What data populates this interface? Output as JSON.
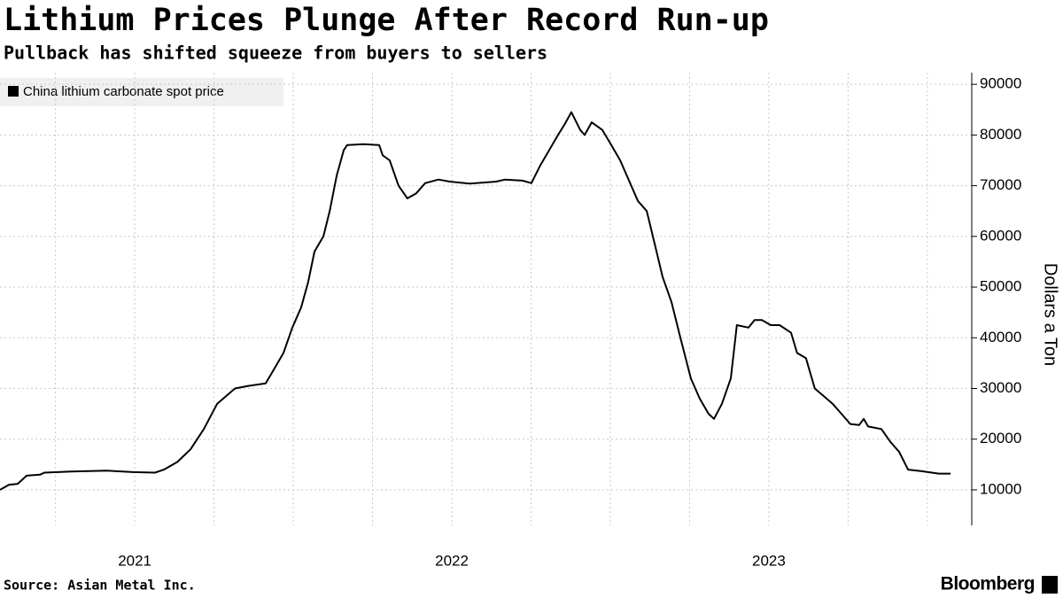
{
  "chart_data": {
    "type": "line",
    "title": "Lithium Prices Plunge After Record Run-up",
    "subtitle": "Pullback has shifted squeeze from buyers to sellers",
    "y_label": "Dollars a Ton",
    "source": "Source: Asian Metal Inc.",
    "brand": "Bloomberg",
    "x": [
      2020.575,
      2020.603,
      2020.631,
      2020.659,
      2020.701,
      2020.715,
      2020.799,
      2020.911,
      2020.994,
      2021.064,
      2021.092,
      2021.134,
      2021.176,
      2021.218,
      2021.26,
      2021.288,
      2021.316,
      2021.358,
      2021.413,
      2021.441,
      2021.469,
      2021.497,
      2021.525,
      2021.547,
      2021.567,
      2021.595,
      2021.615,
      2021.637,
      2021.659,
      2021.67,
      2021.721,
      2021.771,
      2021.782,
      2021.804,
      2021.832,
      2021.86,
      2021.888,
      2021.916,
      2021.958,
      2021.994,
      2022.056,
      2022.14,
      2022.168,
      2022.223,
      2022.251,
      2022.279,
      2022.307,
      2022.335,
      2022.355,
      2022.377,
      2022.405,
      2022.419,
      2022.441,
      2022.475,
      2022.503,
      2022.531,
      2022.559,
      2022.587,
      2022.615,
      2022.642,
      2022.665,
      2022.693,
      2022.721,
      2022.754,
      2022.782,
      2022.81,
      2022.827,
      2022.852,
      2022.88,
      2022.899,
      2022.936,
      2022.955,
      2022.978,
      2023.006,
      2023.034,
      2023.07,
      2023.089,
      2023.117,
      2023.145,
      2023.173,
      2023.201,
      2023.229,
      2023.257,
      2023.285,
      2023.299,
      2023.313,
      2023.355,
      2023.383,
      2023.411,
      2023.439,
      2023.48,
      2023.536,
      2023.573
    ],
    "series": [
      {
        "name": "China lithium carbonate spot price",
        "color": "#000000",
        "values": [
          10000,
          11000,
          11200,
          12800,
          13000,
          13400,
          13600,
          13800,
          13500,
          13400,
          14000,
          15500,
          18000,
          22000,
          27000,
          28500,
          30000,
          30500,
          31000,
          34000,
          37000,
          42000,
          46000,
          51000,
          57000,
          60000,
          65000,
          72000,
          77000,
          78000,
          78200,
          78000,
          76000,
          75000,
          70000,
          67500,
          68500,
          70500,
          71200,
          70800,
          70400,
          70800,
          71200,
          71000,
          70500,
          74000,
          77000,
          80000,
          82000,
          84500,
          81000,
          80000,
          82500,
          81000,
          78000,
          75000,
          71000,
          67000,
          65000,
          58000,
          52000,
          47000,
          40000,
          32000,
          28000,
          25000,
          24000,
          27000,
          32000,
          42500,
          42000,
          43500,
          43500,
          42500,
          42500,
          41000,
          37000,
          36000,
          30000,
          28500,
          27000,
          25000,
          23000,
          22800,
          24000,
          22500,
          22000,
          19500,
          17500,
          14000,
          13700,
          13200,
          13200
        ]
      }
    ],
    "xlim": [
      2020.575,
      2023.64
    ],
    "xticks": [
      2021,
      2022,
      2023
    ],
    "xgrid": [
      2020.75,
      2021,
      2021.25,
      2021.5,
      2021.75,
      2022,
      2022.25,
      2022.5,
      2022.75,
      2023,
      2023.25,
      2023.5
    ],
    "ylim": [
      3000,
      92300
    ],
    "yticks": [
      10000,
      20000,
      30000,
      40000,
      50000,
      60000,
      70000,
      80000,
      90000
    ],
    "grid": true
  }
}
